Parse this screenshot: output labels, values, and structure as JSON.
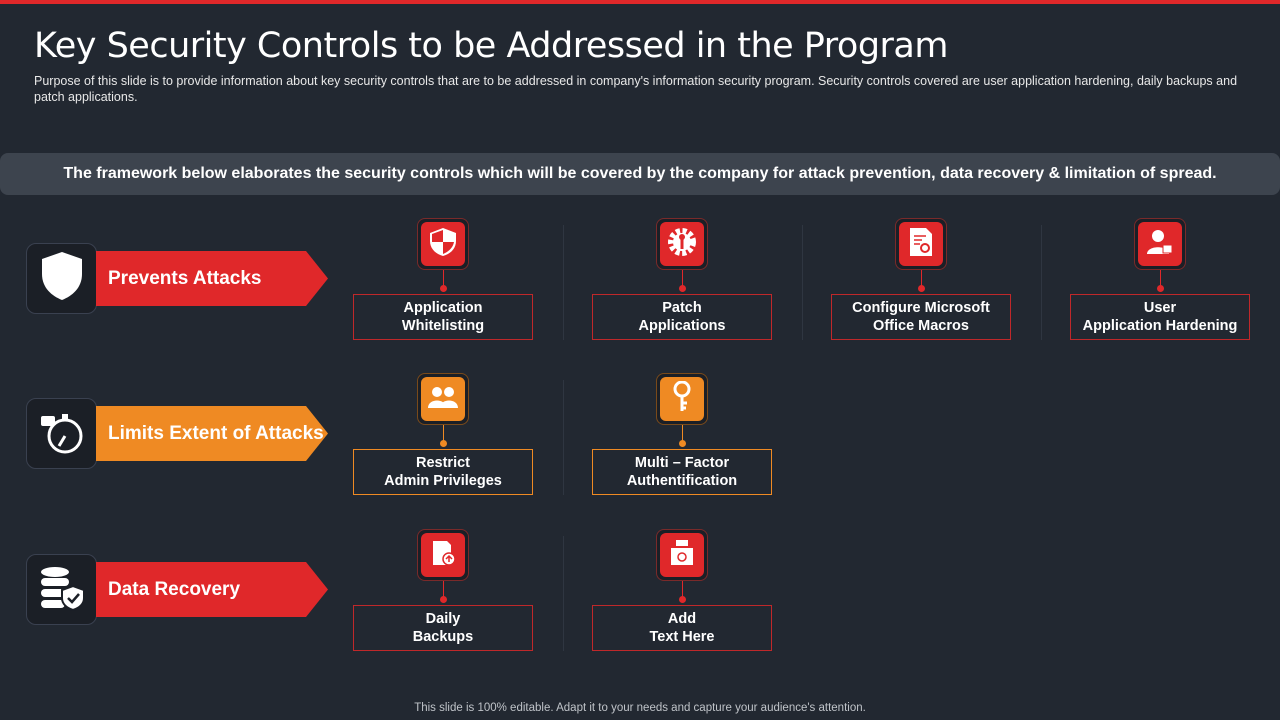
{
  "title": "Key Security Controls to be Addressed in the Program",
  "subtitle": "Purpose of this slide is to provide  information  about  key security controls that are to be addressed in company's information  security program.  Security controls covered  are user application hardening, daily backups and patch applications.",
  "band": "The framework below elaborates the security controls which will be covered by the company for attack prevention, data recovery & limitation of spread.",
  "colors": {
    "red": "#e0282a",
    "orange": "#ef8a23",
    "background": "#222831"
  },
  "rows": [
    {
      "label": "Prevents Attacks",
      "icon": "shield-icon",
      "color": "red",
      "controls": [
        {
          "label": "Application\nWhitelisting",
          "icon": "shield-checker-icon"
        },
        {
          "label": "Patch\nApplications",
          "icon": "gear-wrench-icon"
        },
        {
          "label": "Configure Microsoft\nOffice Macros",
          "icon": "document-gear-icon"
        },
        {
          "label": "User\nApplication Hardening",
          "icon": "user-lock-icon"
        }
      ]
    },
    {
      "label": "Limits Extent of Attacks",
      "icon": "stopwatch-icon",
      "color": "orange",
      "controls": [
        {
          "label": "Restrict\nAdmin  Privileges",
          "icon": "users-icon"
        },
        {
          "label": "Multi – Factor\nAuthentification",
          "icon": "key-icon"
        }
      ]
    },
    {
      "label": "Data Recovery",
      "icon": "database-shield-icon",
      "color": "red",
      "controls": [
        {
          "label": "Daily\nBackups",
          "icon": "sd-card-upload-icon"
        },
        {
          "label": "Add\nText Here",
          "icon": "server-refresh-icon"
        }
      ]
    }
  ],
  "footer": "This slide is 100% editable. Adapt it to your needs and capture your audience's attention."
}
